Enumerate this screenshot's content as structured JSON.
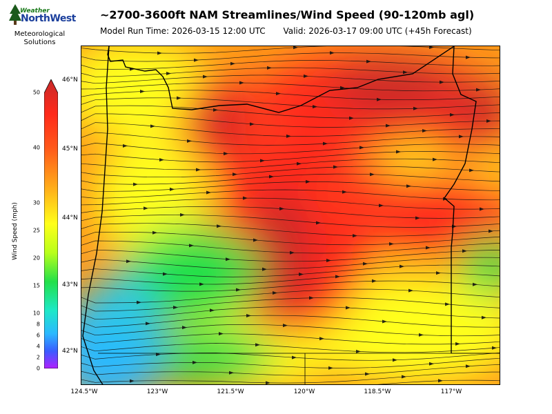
{
  "logo": {
    "word_top": "Weather",
    "word_main": "NorthWest",
    "subtitle_line1": "Meteorological",
    "subtitle_line2": "Solutions"
  },
  "title": "~2700-3600ft NAM Streamlines/Wind Speed (90-120mb agl)",
  "model_run": "Model Run Time: 2026-03-15 12:00 UTC",
  "valid_time": "Valid: 2026-03-17 09:00 UTC  (+45h Forecast)",
  "colorbar": {
    "label": "Wind Speed (mph)",
    "ticks": [
      "0",
      "2",
      "4",
      "6",
      "8",
      "10",
      "15",
      "20",
      "25",
      "30",
      "40",
      "50"
    ]
  },
  "axes": {
    "lat_labels": [
      "46°N",
      "45°N",
      "44°N",
      "43°N",
      "42°N"
    ],
    "lon_labels": [
      "124.5°W",
      "123°W",
      "121.5°W",
      "120°W",
      "118.5°W",
      "117°W"
    ]
  },
  "colors": {
    "strong": "#d42a2a",
    "red": "#ff2a1a",
    "orange": "#ff8a1a",
    "yellow": "#ffff1a",
    "green": "#22e04a",
    "blue": "#2bb8ff"
  }
}
